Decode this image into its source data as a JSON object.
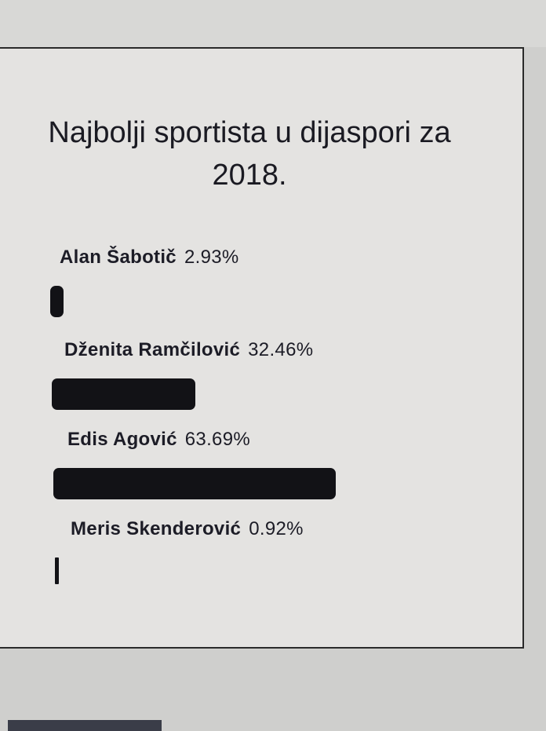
{
  "chart_data": {
    "type": "bar",
    "orientation": "horizontal",
    "title": "Najbolji sportista u dijaspori za 2018.",
    "categories": [
      "Alan Šabotič",
      "Dženita Ramčilović",
      "Edis Agović",
      "Meris Skenderović"
    ],
    "values": [
      2.93,
      32.46,
      63.69,
      0.92
    ],
    "value_labels": [
      "2.93%",
      "32.46%",
      "63.69%",
      "0.92%"
    ],
    "unit": "%",
    "xlim": [
      0,
      100
    ],
    "grid": false,
    "bar_color": "#121216"
  }
}
